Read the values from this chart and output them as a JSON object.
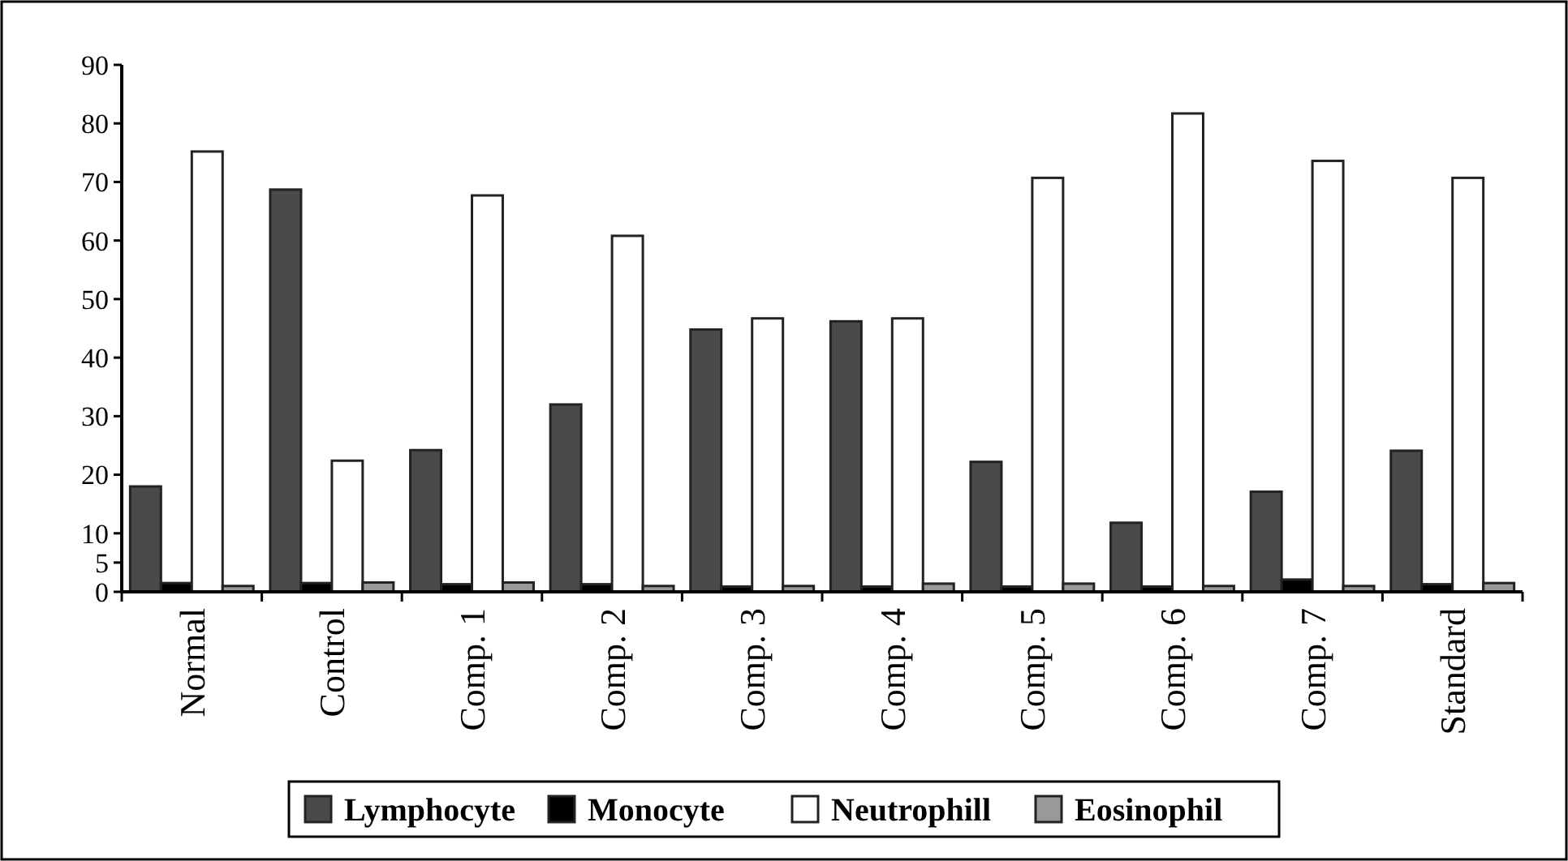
{
  "chart_data": {
    "type": "bar",
    "categories": [
      "Normal",
      "Control",
      "Comp. 1",
      "Comp. 2",
      "Comp. 3",
      "Comp. 4",
      "Comp. 5",
      "Comp. 6",
      "Comp. 7",
      "Standard"
    ],
    "series": [
      {
        "name": "Lymphocyte",
        "color": "#4a4a4a",
        "values": [
          18,
          68.7,
          24.2,
          32,
          44.8,
          46.2,
          22.2,
          11.8,
          17.1,
          24.1
        ]
      },
      {
        "name": "Monocyte",
        "color": "#000000",
        "values": [
          1.5,
          1.5,
          1.3,
          1.3,
          0.9,
          0.9,
          0.9,
          0.9,
          2.1,
          1.3
        ]
      },
      {
        "name": "Neutrophill",
        "color": "#ffffff",
        "values": [
          75.2,
          22.4,
          67.7,
          60.8,
          46.7,
          46.7,
          70.7,
          81.7,
          73.6,
          70.7
        ]
      },
      {
        "name": "Eosinophil",
        "color": "#999999",
        "values": [
          1,
          1.6,
          1.6,
          1,
          1,
          1.4,
          1.4,
          1,
          1,
          1.5
        ]
      }
    ],
    "ylim": [
      0,
      90
    ],
    "yticks": [
      0,
      5,
      10,
      20,
      30,
      40,
      50,
      60,
      70,
      80,
      90
    ],
    "grid": false,
    "legend": "bottom"
  }
}
